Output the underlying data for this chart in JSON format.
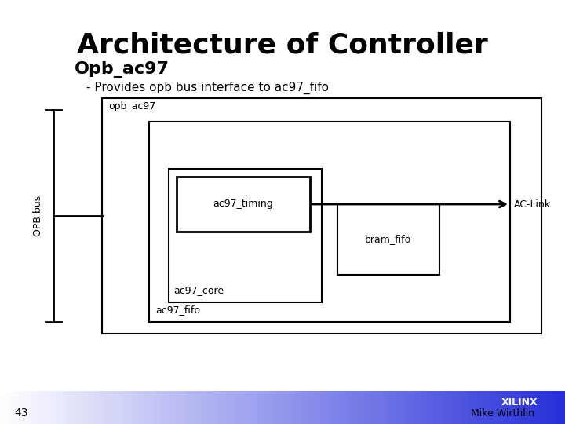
{
  "title": "Architecture of Controller",
  "subtitle": "Opb_ac97",
  "bullet": "- Provides opb bus interface to ac97_fifo",
  "title_fontsize": 26,
  "subtitle_fontsize": 16,
  "bullet_fontsize": 11,
  "bg_color": "#ffffff",
  "text_color": "#000000",
  "page_number": "43",
  "author": "Mike Wirthlin",
  "opb_bus_label": "OPB bus",
  "outer_box_label": "opb_ac97",
  "inner_box_label": "ac97_fifo",
  "ac97_timing_label": "ac97_timing",
  "ac97_core_label": "ac97_core",
  "bram_fifo_label": "bram_fifo",
  "ac_link_label": "AC-Link"
}
